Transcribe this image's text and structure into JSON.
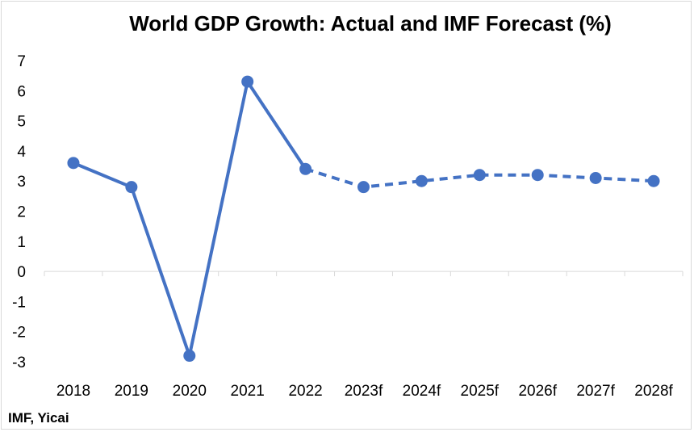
{
  "chart_data": {
    "type": "line",
    "title": "World GDP Growth: Actual and IMF Forecast (%)",
    "categories": [
      "2018",
      "2019",
      "2020",
      "2021",
      "2022",
      "2023f",
      "2024f",
      "2025f",
      "2026f",
      "2027f",
      "2028f"
    ],
    "series": [
      {
        "values": [
          3.6,
          2.8,
          -2.8,
          6.3,
          3.4,
          2.8,
          3.0,
          3.2,
          3.2,
          3.1,
          3.0
        ],
        "color": "#4472c4",
        "actual_through": "2022",
        "forecast_from": "2022",
        "forecast_line_style": "dashed"
      }
    ],
    "ylim": [
      -3,
      7
    ],
    "yticks": [
      -3,
      -2,
      -1,
      0,
      1,
      2,
      3,
      4,
      5,
      6,
      7
    ],
    "xlabel": "",
    "ylabel": "",
    "grid": false,
    "legend": "none"
  },
  "source": "IMF, Yicai"
}
